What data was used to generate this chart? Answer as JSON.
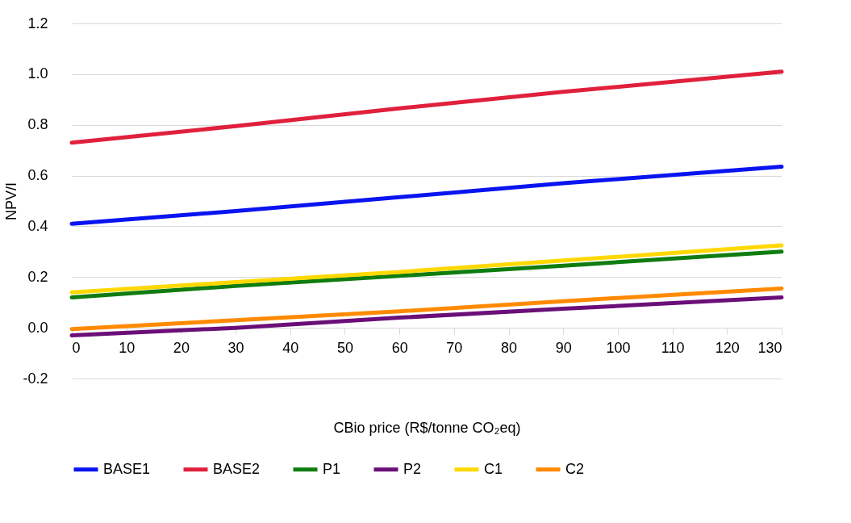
{
  "chart_data": {
    "type": "line",
    "xlabel": "CBio price (R$/tonne CO₂eq)",
    "ylabel": "NPV/I",
    "x": [
      0,
      30,
      60,
      90,
      130
    ],
    "series": [
      {
        "name": "BASE1",
        "color": "#0a14f0",
        "values": [
          0.41,
          0.46,
          0.515,
          0.57,
          0.635
        ]
      },
      {
        "name": "BASE2",
        "color": "#e0203c",
        "values": [
          0.73,
          0.795,
          0.865,
          0.93,
          1.01
        ]
      },
      {
        "name": "P1",
        "color": "#0f7d0f",
        "values": [
          0.12,
          0.165,
          0.205,
          0.245,
          0.3
        ]
      },
      {
        "name": "P2",
        "color": "#6b0f78",
        "values": [
          -0.03,
          0.0,
          0.04,
          0.075,
          0.12
        ]
      },
      {
        "name": "C1",
        "color": "#ffd800",
        "values": [
          0.14,
          0.18,
          0.22,
          0.265,
          0.325
        ]
      },
      {
        "name": "C2",
        "color": "#ff8a00",
        "values": [
          -0.005,
          0.03,
          0.065,
          0.105,
          0.155
        ]
      }
    ],
    "xlim": [
      0,
      130
    ],
    "xticks": [
      0,
      10,
      20,
      30,
      40,
      50,
      60,
      70,
      80,
      90,
      100,
      110,
      120,
      130
    ],
    "ylim": [
      -0.2,
      1.2
    ],
    "yticks": [
      {
        "value": -0.2,
        "label": "-0.2"
      },
      {
        "value": 0,
        "label": "0.0"
      },
      {
        "value": 0.2,
        "label": "0.2"
      },
      {
        "value": 0.4,
        "label": "0.4"
      },
      {
        "value": 0.6,
        "label": "0.6"
      },
      {
        "value": 0.8,
        "label": "0.8"
      },
      {
        "value": 1.0,
        "label": "1.0"
      },
      {
        "value": 1.2,
        "label": "1.2"
      }
    ],
    "grid": "y",
    "legend": "bottom",
    "line_style": "solid",
    "marker": "none"
  }
}
